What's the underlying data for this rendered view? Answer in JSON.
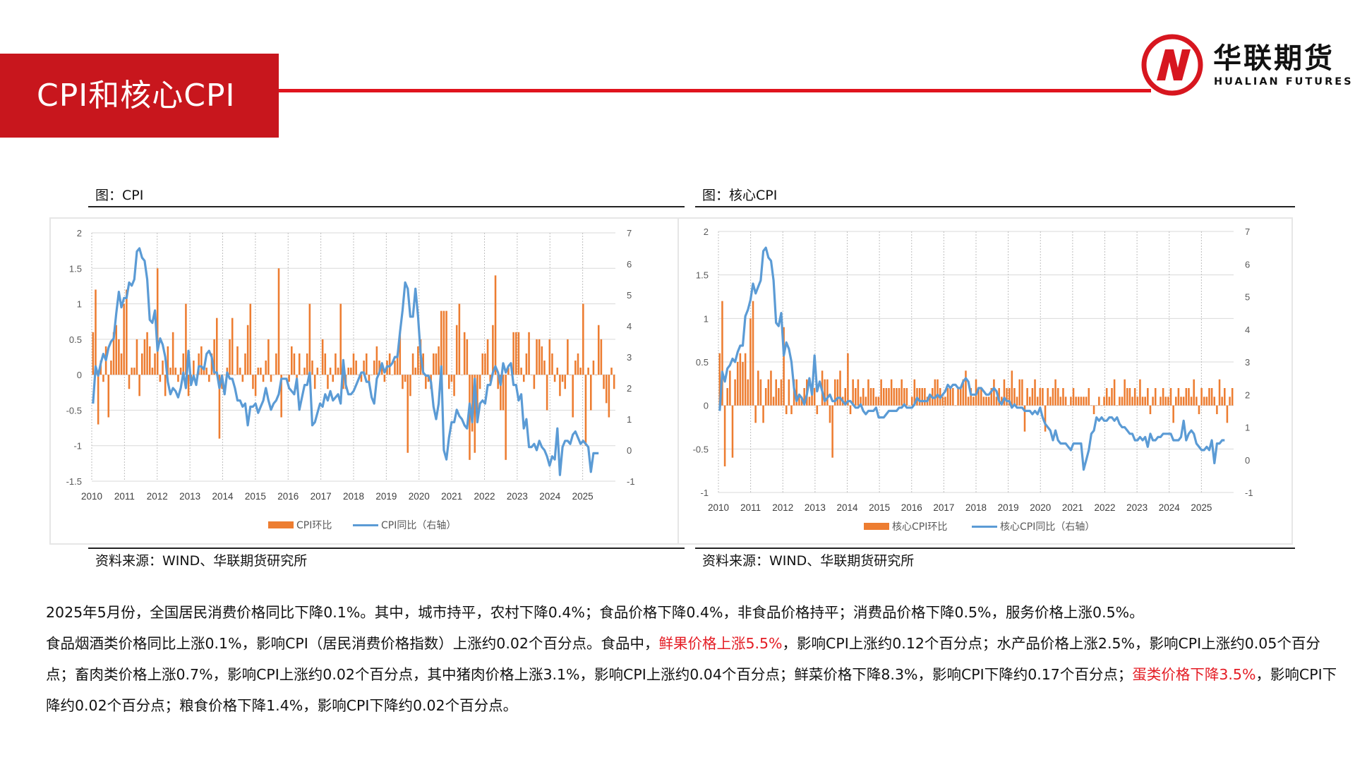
{
  "header": {
    "title": "CPI和核心CPI",
    "logo_cn": "华联期货",
    "logo_en": "HUALIAN FUTURES",
    "accent_color": "#c8161d"
  },
  "panels": [
    {
      "title": "图：CPI",
      "source": "资料来源：WIND、华联期货研究所"
    },
    {
      "title": "图：核心CPI",
      "source": "资料来源：WIND、华联期货研究所"
    }
  ],
  "description": {
    "line1": "2025年5月份，全国居民消费价格同比下降0.1%。其中，城市持平，农村下降0.4%；食品价格下降0.4%，非食品价格持平；消费品价格下降0.5%，服务价格上涨0.5%。",
    "line2_part1": "食品烟酒类价格同比上涨0.1%，影响CPI（居民消费价格指数）上涨约0.02个百分点。食品中，",
    "line2_highlight1": "鲜果价格上涨5.5%",
    "line2_part2": "，影响CPI上涨约0.12个百分点；水产品价格上涨2.5%，影响CPI上涨约0.05个百分点；畜肉类价格上涨0.7%，影响CPI上涨约0.02个百分点，其中猪肉价格上涨3.1%，影响CPI上涨约0.04个百分点；鲜菜价格下降8.3%，影响CPI下降约0.17个百分点；",
    "line2_highlight2": "蛋类价格下降3.5%",
    "line2_part3": "，影响CPI下降约0.02个百分点；粮食价格下降1.4%，影响CPI下降约0.02个百分点。"
  },
  "chart_data": [
    {
      "type": "bar+line",
      "x_ticks": [
        "2010",
        "2011",
        "2012",
        "2013",
        "2014",
        "2015",
        "2016",
        "2017",
        "2018",
        "2019",
        "2020",
        "2021",
        "2022",
        "2023",
        "2024",
        "2025"
      ],
      "y_left": {
        "min": -1.5,
        "max": 2,
        "ticks": [
          "-1.5",
          "-1",
          "-0.5",
          "0",
          "0.5",
          "1",
          "1.5",
          "2"
        ]
      },
      "y_right": {
        "min": -1,
        "max": 7,
        "ticks": [
          "-1",
          "0",
          "1",
          "2",
          "3",
          "4",
          "5",
          "6",
          "7"
        ]
      },
      "series": [
        {
          "name": "CPI环比",
          "kind": "bar",
          "axis": "left",
          "color": "#ed7d31",
          "values": [
            0.6,
            1.2,
            -0.7,
            0.2,
            -0.1,
            0.4,
            -0.6,
            0.2,
            0.6,
            0.7,
            0.5,
            0.3,
            1,
            1.2,
            -0.2,
            0.1,
            0.1,
            0.5,
            -0.3,
            0.3,
            0.5,
            0.6,
            0.4,
            0.1,
            0.3,
            1.5,
            -0.1,
            0.2,
            -0.3,
            0.4,
            0.1,
            0.6,
            0.1,
            -0.1,
            0.1,
            0.3,
            1,
            -0.3,
            -0.1,
            0.2,
            0,
            0.3,
            0.4,
            0.1,
            0.1,
            -0.1,
            0.3,
            0.5,
            0.8,
            -0.9,
            -0.2,
            0,
            0.1,
            0.5,
            0.8,
            0,
            0.4,
            0.1,
            -0.1,
            0.3,
            0.7,
            1,
            -0.2,
            -0.3,
            0.1,
            0.1,
            -0.1,
            0.2,
            0.5,
            -0.1,
            0,
            0.3,
            1.5,
            -0.6,
            0,
            0,
            -0.1,
            0.4,
            0.3,
            -0.2,
            0.3,
            0,
            0.1,
            0.3,
            1,
            0.2,
            -0.2,
            0.1,
            0,
            0.5,
            0.3,
            -0.2,
            0.1,
            -0.1,
            0.3,
            0.1,
            1,
            -0.2,
            -0.2,
            0.1,
            0.1,
            0.3,
            0.2,
            0,
            -0.1,
            0.2,
            0.3,
            -0.1,
            0,
            0.2,
            0.4,
            0.2,
            0.1,
            -0.1,
            0.2,
            0.3,
            0,
            0.2,
            0.3,
            0.6,
            -0.2,
            -0.1,
            -1.1,
            -0.3,
            0.3,
            0.1,
            0.4,
            0.5,
            0.3,
            -0.2,
            -0.1,
            -0.2,
            0.3,
            0.3,
            0.4,
            0.9,
            0.9,
            0.9,
            -0.2,
            -0.1,
            -0.3,
            0.7,
            1,
            0,
            0.6,
            0.5,
            -1.2,
            -0.8,
            -1.1,
            -0.5,
            -0.2,
            0.3,
            0.3,
            0.5,
            -0.1,
            0.7,
            1.4,
            -0.2,
            -0.5,
            -0.5,
            -1.2,
            0.1,
            0,
            0.6,
            0.6,
            0.6,
            0.1,
            -0.1,
            0.3,
            0.6,
            0,
            -0.2,
            0.5,
            0.5,
            0.4,
            0.2,
            -0.5,
            0.5,
            0.3,
            -0.1,
            0.1,
            -0.3,
            -0.1,
            -0.2,
            0.5,
            0,
            -0.6,
            0.2,
            0.3,
            0.1,
            1,
            -1,
            0.1,
            -0.5,
            0.2,
            0,
            0.7,
            0.5,
            -0.2,
            -0.4,
            -0.6,
            0.1,
            -0.2
          ]
        },
        {
          "name": "CPI同比（右轴）",
          "kind": "line",
          "axis": "right",
          "color": "#5b9bd5",
          "values": [
            1.5,
            2.7,
            2.4,
            2.8,
            3.1,
            2.9,
            3.3,
            3.5,
            3.6,
            4.4,
            5.1,
            4.6,
            4.9,
            4.9,
            5.4,
            5.3,
            5.5,
            6.4,
            6.5,
            6.2,
            6.1,
            5.5,
            4.2,
            4.1,
            4.5,
            3.2,
            3.6,
            3.4,
            3,
            2.2,
            1.8,
            2,
            1.9,
            1.7,
            2,
            2.5,
            2,
            3.2,
            2.1,
            2.4,
            2.1,
            2.7,
            2.7,
            2.6,
            3.1,
            3.2,
            3,
            2.5,
            2.5,
            2,
            2.4,
            1.8,
            2.5,
            2.3,
            2.3,
            2,
            1.6,
            1.6,
            1.4,
            1.5,
            0.8,
            1.4,
            1.4,
            1.5,
            1.2,
            1.4,
            1.6,
            2,
            1.6,
            1.3,
            1.5,
            1.6,
            1.8,
            2.3,
            2.3,
            2.3,
            2,
            1.9,
            1.8,
            2.3,
            1.3,
            1.7,
            2.1,
            2.1,
            2.5,
            0.8,
            0.9,
            1.2,
            1.5,
            1.4,
            1.8,
            1.6,
            1.9,
            1.6,
            1.7,
            1.8,
            1.5,
            2.9,
            2.1,
            1.8,
            1.8,
            1.9,
            2.1,
            2.3,
            2.5,
            2.5,
            2.2,
            2.2,
            1.7,
            1.5,
            2.3,
            2.5,
            2.8,
            2.5,
            2.7,
            2.7,
            2.8,
            3,
            3,
            3.8,
            4.5,
            5.4,
            5.2,
            4.3,
            4.3,
            5.2,
            4.3,
            3.1,
            2.5,
            2.4,
            2.4,
            2.2,
            1.4,
            1,
            1.5,
            2.7,
            0,
            -0.3,
            0.4,
            0.9,
            0.9,
            1.3,
            1.1,
            1,
            0.8,
            0.7,
            1.5,
            0.9,
            2.3,
            0.9,
            1.5,
            1.6,
            1.5,
            2.1,
            2.1,
            2.5,
            2.7,
            2.5,
            2.1,
            2.8,
            2.5,
            2.7,
            2.8,
            2.1,
            2.1,
            1.6,
            1.8,
            0.7,
            1,
            0.1,
            0.1,
            0.2,
            0,
            0.3,
            0.1,
            0,
            -0.2,
            -0.5,
            -0.2,
            -0.3,
            0.7,
            -0.8,
            0.1,
            0.3,
            0.3,
            0.2,
            0.5,
            0.6,
            0.4,
            0.2,
            0.3,
            0.2,
            0.1,
            -0.7,
            -0.1,
            -0.1,
            -0.1
          ]
        }
      ]
    },
    {
      "type": "bar+line",
      "x_ticks": [
        "2010",
        "2011",
        "2012",
        "2013",
        "2014",
        "2015",
        "2016",
        "2017",
        "2018",
        "2019",
        "2020",
        "2021",
        "2022",
        "2023",
        "2024",
        "2025"
      ],
      "y_left": {
        "min": -1,
        "max": 2,
        "ticks": [
          "-1",
          "-0.5",
          "0",
          "0.5",
          "1",
          "1.5",
          "2"
        ]
      },
      "y_right": {
        "min": -1,
        "max": 7,
        "ticks": [
          "-1",
          "0",
          "1",
          "2",
          "3",
          "4",
          "5",
          "6",
          "7"
        ]
      },
      "series": [
        {
          "name": "核心CPI环比",
          "kind": "bar",
          "axis": "left",
          "color": "#ed7d31",
          "values": [
            0.6,
            1.2,
            -0.7,
            0.2,
            0.4,
            -0.6,
            0.3,
            0.5,
            0.6,
            0.5,
            0.6,
            0.3,
            1,
            1.2,
            -0.2,
            0.4,
            0.3,
            -0.2,
            0.2,
            0.3,
            0.4,
            0.1,
            0.3,
            0.2,
            0.3,
            0.9,
            -0.1,
            0.3,
            -0.1,
            0.3,
            0.3,
            0.1,
            0.1,
            0.2,
            0.3,
            0.1,
            0.2,
            0.2,
            -0.1,
            0,
            0.4,
            0.3,
            0.3,
            -0.2,
            -0.6,
            0.3,
            0.3,
            0.4,
            0.1,
            0.2,
            0.6,
            -0.1,
            0.3,
            0.2,
            0.3,
            0.1,
            0.2,
            0.1,
            0.3,
            0.2,
            0.2,
            0.1,
            0.1,
            0.3,
            0.2,
            0.2,
            0.2,
            0.3,
            0.2,
            0.2,
            0.2,
            0.3,
            0.2,
            0.2,
            0,
            0.1,
            0.3,
            0.2,
            0.2,
            0.2,
            0.2,
            0.1,
            0.1,
            0.2,
            0.3,
            0.3,
            0.2,
            0.1,
            0.1,
            0.2,
            0.2,
            0.2,
            0,
            0.2,
            0.2,
            0.3,
            0.4,
            0.1,
            0.2,
            0.1,
            0.3,
            0.2,
            0.2,
            0.1,
            0.1,
            0.1,
            0.2,
            0.3,
            0.1,
            0.2,
            0.1,
            0.3,
            0.2,
            0.2,
            0.4,
            0.2,
            0.1,
            0.3,
            0.3,
            -0.3,
            0.2,
            0.1,
            0.2,
            0.3,
            0.1,
            0.2,
            0.2,
            -0.3,
            0.2,
            0.1,
            0.2,
            0.3,
            0.2,
            0.1,
            0.2,
            0.1,
            0,
            0.1,
            0.2,
            0.1,
            0.1,
            0.1,
            0.1,
            0.1,
            0.2,
            0,
            -0.1,
            0,
            0.1,
            0,
            0.1,
            0.2,
            0.1,
            0.2,
            0.3,
            0,
            0.1,
            0.1,
            0.3,
            0.2,
            0.2,
            0.1,
            0.2,
            0.1,
            0.3,
            0.1,
            0.1,
            0.2,
            -0.1,
            0.1,
            0.2,
            0,
            0.1,
            0.2,
            0.1,
            0.1,
            0.2,
            -0.2,
            0.1,
            0.2,
            0.1,
            0.1,
            0.2,
            0.2,
            0.1,
            0.3,
            0.1,
            -0.1,
            0.2,
            0.1,
            0.1,
            0.2,
            0.2,
            0.1,
            -0.1,
            0.3,
            0.1,
            0.2,
            -0.2,
            0.1,
            0.2
          ]
        },
        {
          "name": "核心CPI同比（右轴）",
          "kind": "line",
          "axis": "right",
          "color": "#5b9bd5",
          "values": [
            1.5,
            2.7,
            2.4,
            2.8,
            2.9,
            3.1,
            3,
            3.3,
            3.5,
            3.5,
            4.4,
            4.6,
            4.9,
            5.4,
            5.1,
            5.3,
            5.5,
            6.4,
            6.5,
            6.2,
            6.1,
            5.5,
            4.2,
            4.1,
            4.5,
            3.2,
            3.6,
            3.4,
            3,
            2.2,
            1.8,
            2,
            1.9,
            1.7,
            2,
            2.5,
            2,
            3.2,
            2.1,
            2.4,
            2.1,
            1.8,
            1.9,
            2,
            1.8,
            1.8,
            1.9,
            1.9,
            1.8,
            1.7,
            1.8,
            1.8,
            1.7,
            1.6,
            1.6,
            1.7,
            1.5,
            1.4,
            1.5,
            1.5,
            1.5,
            1.6,
            1.3,
            1.3,
            1.3,
            1.4,
            1.5,
            1.5,
            1.5,
            1.5,
            1.6,
            1.6,
            1.7,
            1.6,
            1.6,
            1.6,
            1.7,
            1.9,
            1.8,
            1.8,
            1.8,
            1.8,
            2,
            1.9,
            1.9,
            2,
            1.9,
            2,
            2.1,
            2.3,
            2.2,
            2.3,
            2.3,
            2.2,
            2.2,
            2.4,
            2.5,
            2.4,
            2,
            2,
            2,
            2.2,
            2.2,
            2.1,
            2,
            2,
            2.1,
            2.2,
            2.1,
            1.8,
            1.7,
            1.9,
            1.8,
            1.8,
            1.6,
            1.7,
            1.6,
            1.6,
            1.6,
            1.5,
            1.5,
            1.5,
            1.4,
            1.5,
            1.4,
            1.6,
            1.3,
            1.1,
            1,
            0.9,
            0.6,
            0.9,
            0.6,
            0.5,
            0.5,
            0.5,
            0.4,
            0.3,
            0.5,
            0.5,
            0.5,
            0.5,
            -0.3,
            0,
            0.3,
            0.8,
            0.9,
            1.3,
            1.2,
            1.3,
            1.2,
            1.2,
            1.3,
            1.3,
            1.2,
            1.3,
            1.1,
            1,
            1,
            0.9,
            0.8,
            0.8,
            0.6,
            0.6,
            0.7,
            0.6,
            0.7,
            0.4,
            0.8,
            0.6,
            0.6,
            0.7,
            0.7,
            0.8,
            0.8,
            0.8,
            0.8,
            0.6,
            0.6,
            0.6,
            0.7,
            1.2,
            0.6,
            0.8,
            0.9,
            0.8,
            0.5,
            0.4,
            0.3,
            0.3,
            0.4,
            0.3,
            0.6,
            -0.1,
            0.5,
            0.5,
            0.6,
            0.6
          ]
        }
      ]
    }
  ]
}
